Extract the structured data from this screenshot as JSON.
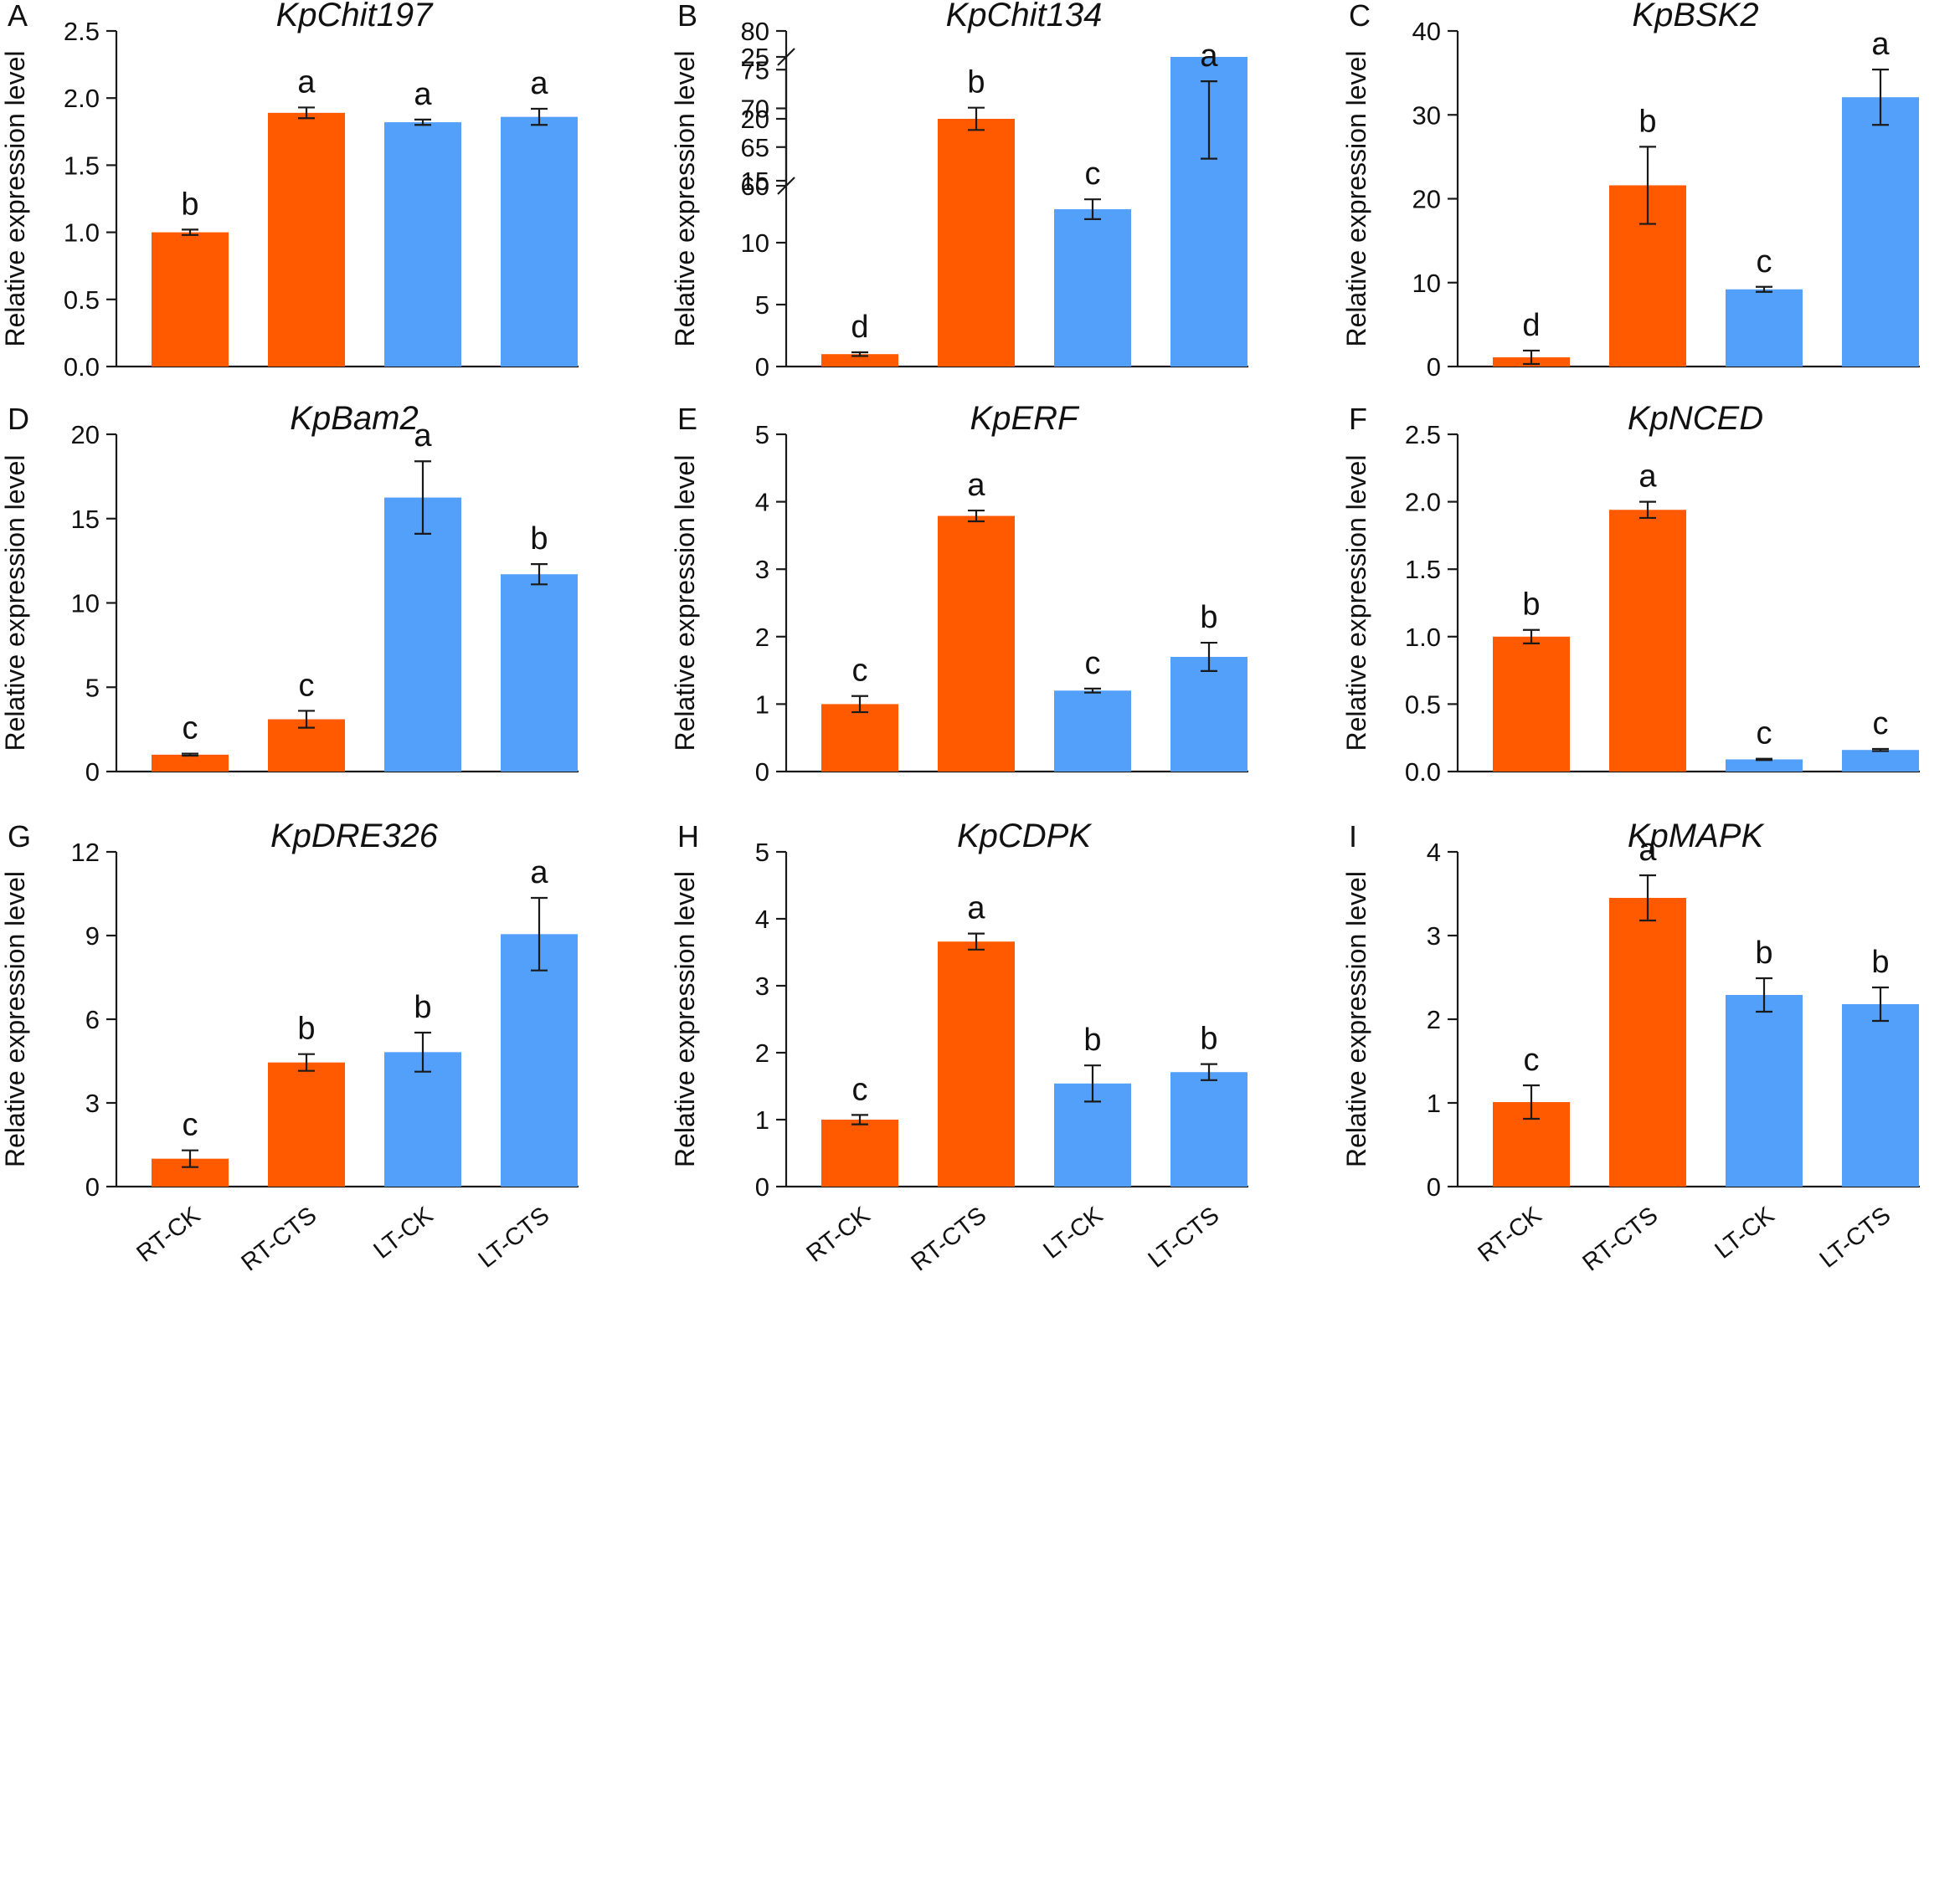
{
  "colors": {
    "rt": "#FF5A00",
    "lt": "#52A0FA",
    "axis": "#1a1a1a",
    "text": "#111111"
  },
  "ylabel": "Relative expression level",
  "categories": [
    "RT-CK",
    "RT-CTS",
    "LT-CK",
    "LT-CTS"
  ],
  "chart_data": [
    {
      "panel": "A",
      "title": "KpChit197",
      "type": "bar",
      "ylabel": "Relative expression level",
      "categories": [
        "RT-CK",
        "RT-CTS",
        "LT-CK",
        "LT-CTS"
      ],
      "ylim": [
        0,
        2.5
      ],
      "yticks": [
        0,
        0.5,
        1.0,
        1.5,
        2.0,
        2.5
      ],
      "ytick_labels": [
        "0.0",
        "0.5",
        "1.0",
        "1.5",
        "2.0",
        "2.5"
      ],
      "values": [
        1.0,
        1.89,
        1.82,
        1.86
      ],
      "errors": [
        0.02,
        0.04,
        0.02,
        0.06
      ],
      "letters": [
        "b",
        "a",
        "a",
        "a"
      ]
    },
    {
      "panel": "B",
      "title": "KpChit134",
      "type": "bar",
      "ylabel": "Relative expression level",
      "categories": [
        "RT-CK",
        "RT-CTS",
        "LT-CK",
        "LT-CTS"
      ],
      "axis_break": [
        25,
        60
      ],
      "ylim": [
        0,
        80
      ],
      "yticks": [
        0,
        5,
        10,
        15,
        20,
        25,
        60,
        65,
        70,
        75,
        80
      ],
      "ytick_labels": [
        "0",
        "5",
        "10",
        "15",
        "20",
        "25",
        "60",
        "65",
        "70",
        "75",
        "80"
      ],
      "values": [
        1.0,
        20.0,
        12.7,
        68.5
      ],
      "errors": [
        0.15,
        0.9,
        0.8,
        5.0
      ],
      "letters": [
        "d",
        "b",
        "c",
        "a"
      ]
    },
    {
      "panel": "C",
      "title": "KpBSK2",
      "type": "bar",
      "ylabel": "Relative expression level",
      "categories": [
        "RT-CK",
        "RT-CTS",
        "LT-CK",
        "LT-CTS"
      ],
      "ylim": [
        0,
        40
      ],
      "yticks": [
        0,
        10,
        20,
        30,
        40
      ],
      "ytick_labels": [
        "0",
        "10",
        "20",
        "30",
        "40"
      ],
      "values": [
        1.1,
        21.6,
        9.2,
        32.1
      ],
      "errors": [
        0.8,
        4.6,
        0.3,
        3.3
      ],
      "letters": [
        "d",
        "b",
        "c",
        "a"
      ]
    },
    {
      "panel": "D",
      "title": "KpBam2",
      "type": "bar",
      "ylabel": "Relative expression level",
      "categories": [
        "RT-CK",
        "RT-CTS",
        "LT-CK",
        "LT-CTS"
      ],
      "ylim": [
        0,
        20
      ],
      "yticks": [
        0,
        5,
        10,
        15,
        20
      ],
      "ytick_labels": [
        "0",
        "5",
        "10",
        "15",
        "20"
      ],
      "values": [
        1.0,
        3.1,
        16.25,
        11.7
      ],
      "errors": [
        0.06,
        0.5,
        2.15,
        0.6
      ],
      "letters": [
        "c",
        "c",
        "a",
        "b"
      ]
    },
    {
      "panel": "E",
      "title": "KpERF",
      "type": "bar",
      "ylabel": "Relative expression level",
      "categories": [
        "RT-CK",
        "RT-CTS",
        "LT-CK",
        "LT-CTS"
      ],
      "ylim": [
        0,
        5
      ],
      "yticks": [
        0,
        1,
        2,
        3,
        4,
        5
      ],
      "ytick_labels": [
        "0",
        "1",
        "2",
        "3",
        "4",
        "5"
      ],
      "values": [
        1.0,
        3.79,
        1.2,
        1.7
      ],
      "errors": [
        0.12,
        0.08,
        0.03,
        0.21
      ],
      "letters": [
        "c",
        "a",
        "c",
        "b"
      ]
    },
    {
      "panel": "F",
      "title": "KpNCED",
      "type": "bar",
      "ylabel": "Relative expression level",
      "categories": [
        "RT-CK",
        "RT-CTS",
        "LT-CK",
        "LT-CTS"
      ],
      "ylim": [
        0,
        2.5
      ],
      "yticks": [
        0,
        0.5,
        1.0,
        1.5,
        2.0,
        2.5
      ],
      "ytick_labels": [
        "0.0",
        "0.5",
        "1.0",
        "1.5",
        "2.0",
        "2.5"
      ],
      "values": [
        1.0,
        1.94,
        0.09,
        0.16
      ],
      "errors": [
        0.05,
        0.06,
        0.005,
        0.008
      ],
      "letters": [
        "b",
        "a",
        "c",
        "c"
      ]
    },
    {
      "panel": "G",
      "title": "KpDRE326",
      "type": "bar",
      "ylabel": "Relative expression level",
      "categories": [
        "RT-CK",
        "RT-CTS",
        "LT-CK",
        "LT-CTS"
      ],
      "ylim": [
        0,
        12
      ],
      "yticks": [
        0,
        3,
        6,
        9,
        12
      ],
      "ytick_labels": [
        "0",
        "3",
        "6",
        "9",
        "12"
      ],
      "values": [
        1.0,
        4.45,
        4.82,
        9.05
      ],
      "errors": [
        0.3,
        0.3,
        0.7,
        1.3
      ],
      "letters": [
        "c",
        "b",
        "b",
        "a"
      ]
    },
    {
      "panel": "H",
      "title": "KpCDPK",
      "type": "bar",
      "ylabel": "Relative expression level",
      "categories": [
        "RT-CK",
        "RT-CTS",
        "LT-CK",
        "LT-CTS"
      ],
      "ylim": [
        0,
        5
      ],
      "yticks": [
        0,
        1,
        2,
        3,
        4,
        5
      ],
      "ytick_labels": [
        "0",
        "1",
        "2",
        "3",
        "4",
        "5"
      ],
      "values": [
        1.0,
        3.66,
        1.54,
        1.71
      ],
      "errors": [
        0.07,
        0.12,
        0.27,
        0.12
      ],
      "letters": [
        "c",
        "a",
        "b",
        "b"
      ]
    },
    {
      "panel": "I",
      "title": "KpMAPK",
      "type": "bar",
      "ylabel": "Relative expression level",
      "categories": [
        "RT-CK",
        "RT-CTS",
        "LT-CK",
        "LT-CTS"
      ],
      "ylim": [
        0,
        4
      ],
      "yticks": [
        0,
        1,
        2,
        3,
        4
      ],
      "ytick_labels": [
        "0",
        "1",
        "2",
        "3",
        "4"
      ],
      "values": [
        1.01,
        3.45,
        2.29,
        2.18
      ],
      "errors": [
        0.2,
        0.27,
        0.2,
        0.2
      ],
      "letters": [
        "c",
        "a",
        "b",
        "b"
      ]
    }
  ]
}
